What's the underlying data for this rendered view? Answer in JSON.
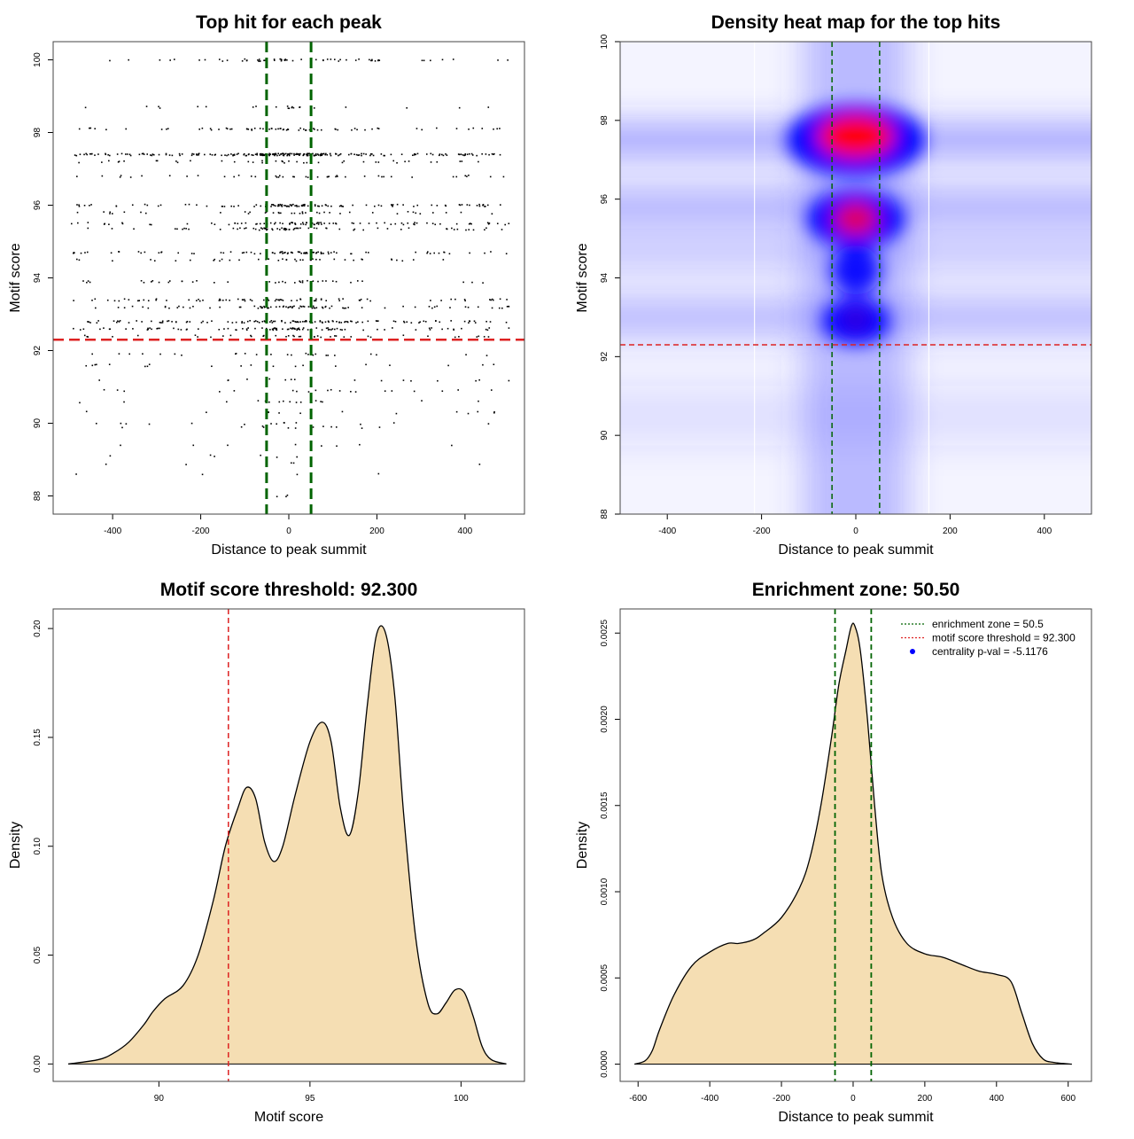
{
  "colors": {
    "threshold_line": "#dd2222",
    "zone_line": "#006400",
    "density_fill": "#f5deb3",
    "centrality_point": "#0000ff",
    "heat_low": "#ffffff",
    "heat_mid": "#0000ff",
    "heat_high": "#ff0000"
  },
  "chart_data": [
    {
      "id": "scatter",
      "type": "scatter",
      "title": "Top hit for each peak",
      "xlabel": "Distance to peak summit",
      "ylabel": "Motif score",
      "xlim": [
        -535,
        535
      ],
      "ylim": [
        87.5,
        100.5
      ],
      "xticks": [
        -400,
        -200,
        0,
        200,
        400
      ],
      "yticks": [
        88,
        90,
        92,
        94,
        96,
        98,
        100
      ],
      "hline": 92.3,
      "vlines": [
        -50.5,
        50.5
      ],
      "score_levels": [
        {
          "y": 100.0,
          "n": 60
        },
        {
          "y": 98.7,
          "n": 22
        },
        {
          "y": 98.1,
          "n": 70
        },
        {
          "y": 97.4,
          "n": 230
        },
        {
          "y": 97.2,
          "n": 40
        },
        {
          "y": 96.8,
          "n": 45
        },
        {
          "y": 96.0,
          "n": 110
        },
        {
          "y": 95.8,
          "n": 40
        },
        {
          "y": 95.5,
          "n": 90
        },
        {
          "y": 95.35,
          "n": 70
        },
        {
          "y": 94.7,
          "n": 85
        },
        {
          "y": 94.5,
          "n": 40
        },
        {
          "y": 93.9,
          "n": 40
        },
        {
          "y": 93.4,
          "n": 75
        },
        {
          "y": 93.2,
          "n": 80
        },
        {
          "y": 92.8,
          "n": 120
        },
        {
          "y": 92.6,
          "n": 95
        },
        {
          "y": 92.4,
          "n": 40
        },
        {
          "y": 91.9,
          "n": 25
        },
        {
          "y": 91.6,
          "n": 20
        },
        {
          "y": 91.2,
          "n": 16
        },
        {
          "y": 90.9,
          "n": 20
        },
        {
          "y": 90.6,
          "n": 16
        },
        {
          "y": 90.3,
          "n": 14
        },
        {
          "y": 90.0,
          "n": 14
        },
        {
          "y": 89.9,
          "n": 12
        },
        {
          "y": 89.4,
          "n": 8
        },
        {
          "y": 89.1,
          "n": 6
        },
        {
          "y": 88.9,
          "n": 5
        },
        {
          "y": 88.6,
          "n": 4
        },
        {
          "y": 88.0,
          "n": 3
        }
      ]
    },
    {
      "id": "heatmap",
      "type": "heatmap",
      "title": "Density heat map for the top hits",
      "xlabel": "Distance to peak summit",
      "ylabel": "Motif score",
      "xlim": [
        -500,
        500
      ],
      "ylim": [
        88,
        100
      ],
      "xticks": [
        -400,
        -200,
        0,
        200,
        400
      ],
      "yticks": [
        88,
        90,
        92,
        94,
        96,
        98,
        100
      ],
      "hline": 92.3,
      "vlines": [
        -50.5,
        50.5
      ],
      "white_vlines": [
        -215,
        155
      ],
      "hotspots": [
        {
          "x": 0,
          "y": 97.6,
          "w": 1.0
        },
        {
          "x": 0,
          "y": 95.5,
          "w": 0.85
        },
        {
          "x": 0,
          "y": 92.9,
          "w": 0.55
        },
        {
          "x": 0,
          "y": 94.2,
          "w": 0.35
        }
      ]
    },
    {
      "id": "score_density",
      "type": "area",
      "title": "Motif score threshold: 92.300",
      "xlabel": "Motif score",
      "ylabel": "Density",
      "xlim": [
        86.5,
        102.1
      ],
      "ylim": [
        -0.008,
        0.209
      ],
      "xticks": [
        90,
        95,
        100
      ],
      "yticks": [
        0.0,
        0.05,
        0.1,
        0.15,
        0.2
      ],
      "ytick_labels": [
        "0.00",
        "0.05",
        "0.10",
        "0.15",
        "0.20"
      ],
      "vline": 92.3,
      "x": [
        87,
        88,
        88.5,
        89,
        89.5,
        89.8,
        90.2,
        90.8,
        91.3,
        91.8,
        92.2,
        92.6,
        92.9,
        93.2,
        93.5,
        93.8,
        94.1,
        94.5,
        95.0,
        95.4,
        95.7,
        96.0,
        96.3,
        96.6,
        96.9,
        97.2,
        97.5,
        97.8,
        98.1,
        98.5,
        98.9,
        99.2,
        99.5,
        99.8,
        100.1,
        100.4,
        100.7,
        101.0,
        101.5
      ],
      "y": [
        0.0,
        0.002,
        0.005,
        0.01,
        0.018,
        0.024,
        0.03,
        0.036,
        0.05,
        0.075,
        0.1,
        0.117,
        0.127,
        0.122,
        0.102,
        0.093,
        0.1,
        0.123,
        0.148,
        0.157,
        0.148,
        0.118,
        0.105,
        0.125,
        0.165,
        0.197,
        0.198,
        0.17,
        0.115,
        0.058,
        0.028,
        0.023,
        0.028,
        0.034,
        0.033,
        0.022,
        0.008,
        0.002,
        0.0
      ]
    },
    {
      "id": "distance_density",
      "type": "area",
      "title": "Enrichment zone: 50.50",
      "xlabel": "Distance to peak summit",
      "ylabel": "Density",
      "xlim": [
        -650,
        665
      ],
      "ylim": [
        -0.0001,
        0.00264
      ],
      "xticks": [
        -600,
        -400,
        -200,
        0,
        200,
        400,
        600
      ],
      "yticks": [
        0.0,
        0.0005,
        0.001,
        0.0015,
        0.002,
        0.0025
      ],
      "ytick_labels": [
        "0.0000",
        "0.0005",
        "0.0010",
        "0.0015",
        "0.0020",
        "0.0025"
      ],
      "vlines": [
        -50.5,
        50.5
      ],
      "x": [
        -610,
        -580,
        -560,
        -540,
        -500,
        -450,
        -400,
        -350,
        -320,
        -280,
        -250,
        -200,
        -150,
        -120,
        -90,
        -60,
        -40,
        -20,
        -5,
        5,
        20,
        40,
        60,
        80,
        110,
        150,
        200,
        250,
        300,
        350,
        400,
        440,
        470,
        500,
        530,
        560,
        610
      ],
      "y": [
        0.0,
        2e-05,
        8e-05,
        0.0002,
        0.0004,
        0.00057,
        0.00065,
        0.0007,
        0.0007,
        0.00072,
        0.00076,
        0.00085,
        0.00102,
        0.0012,
        0.0015,
        0.0019,
        0.0022,
        0.0024,
        0.00254,
        0.00254,
        0.0024,
        0.002,
        0.0015,
        0.0011,
        0.00085,
        0.0007,
        0.00064,
        0.00062,
        0.00058,
        0.00054,
        0.00052,
        0.00048,
        0.0003,
        0.00012,
        3e-05,
        1e-05,
        0.0
      ]
    }
  ],
  "legend": {
    "items": [
      {
        "label": "enrichment zone = 50.5",
        "kind": "line",
        "color_key": "zone_line"
      },
      {
        "label": "motif score threshold = 92.300",
        "kind": "line",
        "color_key": "threshold_line"
      },
      {
        "label": "centrality p-val = -5.1176",
        "kind": "point",
        "color_key": "centrality_point"
      }
    ]
  }
}
